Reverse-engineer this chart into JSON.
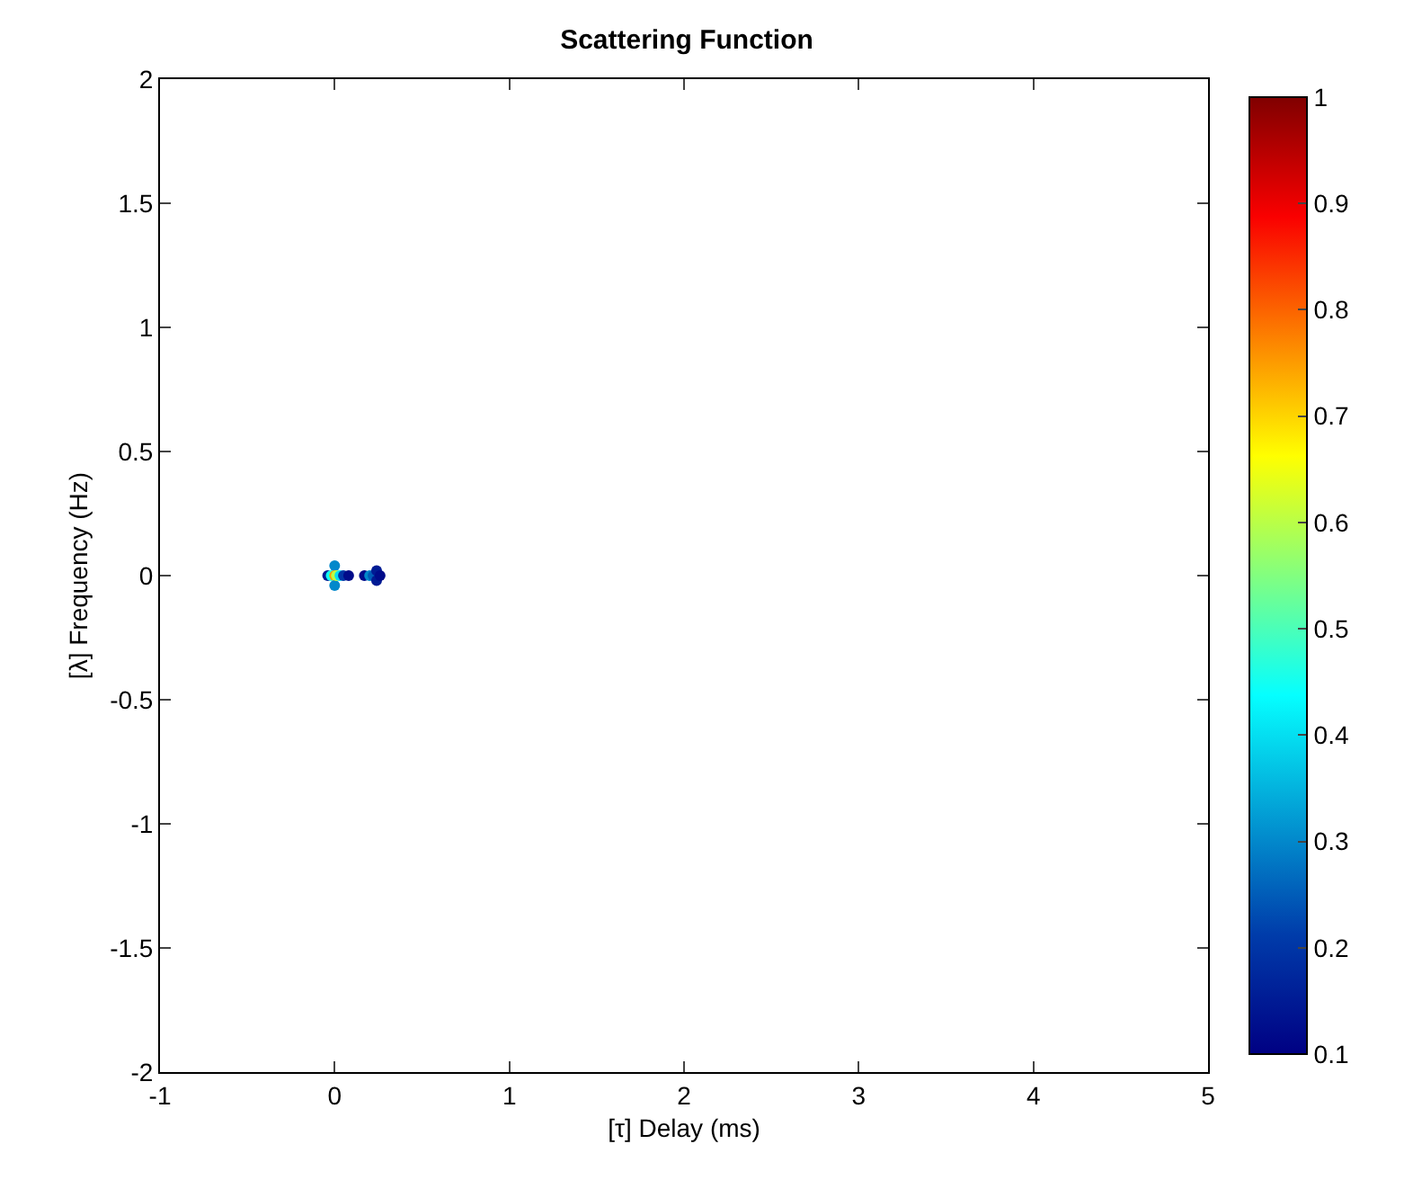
{
  "chart_data": {
    "type": "scatter",
    "title": "Scattering Function",
    "xlabel": "[τ] Delay (ms)",
    "ylabel": "[λ] Frequency (Hz)",
    "x": [
      -0.04,
      -0.02,
      0,
      0,
      0,
      0.01,
      0.03,
      0.05,
      0.08,
      0.17,
      0.2,
      0.22,
      0.24,
      0.24,
      0.26
    ],
    "values": [
      0,
      0,
      0.04,
      0,
      -0.04,
      0,
      0,
      0,
      0,
      0,
      0,
      0,
      0.02,
      -0.02,
      0
    ],
    "cvalues": [
      0.15,
      0.45,
      0.3,
      0.75,
      0.3,
      0.6,
      0.4,
      0.2,
      0.12,
      0.12,
      0.3,
      0.25,
      0.15,
      0.15,
      0.12
    ],
    "xlim": [
      -1,
      5
    ],
    "xticks": [
      -1,
      0,
      1,
      2,
      3,
      4,
      5
    ],
    "ylim": [
      -2,
      2
    ],
    "yticks": [
      -2,
      -1.5,
      -1,
      -0.5,
      0,
      0.5,
      1,
      1.5,
      2
    ],
    "clim": [
      0.1,
      1
    ],
    "cticks": [
      0.1,
      0.2,
      0.3,
      0.4,
      0.5,
      0.6,
      0.7,
      0.8,
      0.9,
      1
    ],
    "marker": "circle",
    "grid": false,
    "legend": false
  }
}
